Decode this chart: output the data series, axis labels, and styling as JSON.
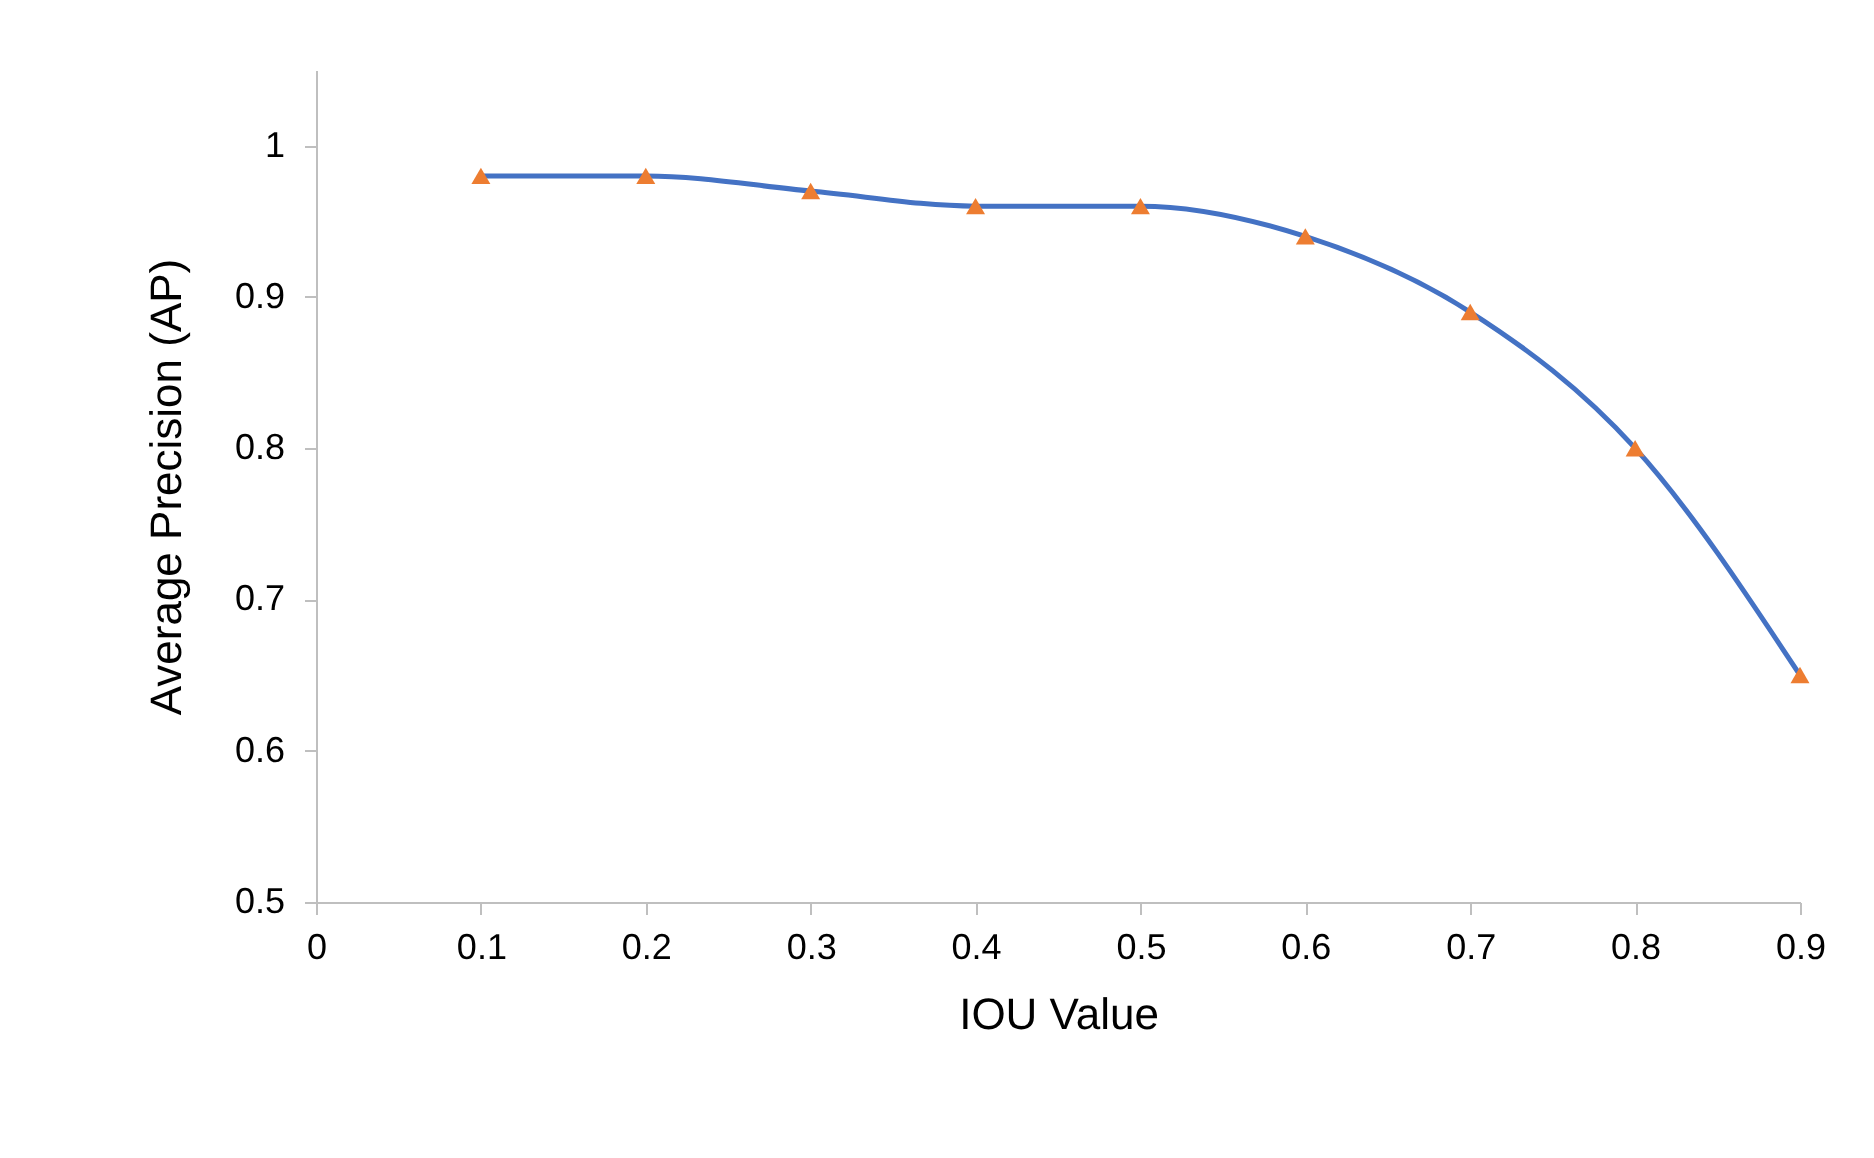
{
  "chart_data": {
    "type": "line",
    "xlabel": "IOU Value",
    "ylabel": "Average Precision (AP)",
    "x": [
      0.1,
      0.2,
      0.3,
      0.4,
      0.5,
      0.6,
      0.7,
      0.8,
      0.9
    ],
    "series": [
      {
        "color": "#4472c4",
        "marker": "none",
        "values": [
          0.98,
          0.98,
          0.97,
          0.96,
          0.96,
          0.94,
          0.89,
          0.8,
          0.65
        ]
      },
      {
        "type": "scatter",
        "color": "#ed7d31",
        "marker": "triangle",
        "values": [
          0.98,
          0.98,
          0.97,
          0.96,
          0.96,
          0.94,
          0.89,
          0.8,
          0.65
        ]
      }
    ],
    "xlim": [
      0,
      0.9
    ],
    "xticks": [
      0,
      0.1,
      0.2,
      0.3,
      0.4,
      0.5,
      0.6,
      0.7,
      0.8,
      0.9
    ],
    "ylim": [
      0.5,
      1.05
    ],
    "yticks": [
      0.5,
      0.6,
      0.7,
      0.8,
      0.9,
      1
    ],
    "grid": false,
    "line_style": "solid"
  }
}
